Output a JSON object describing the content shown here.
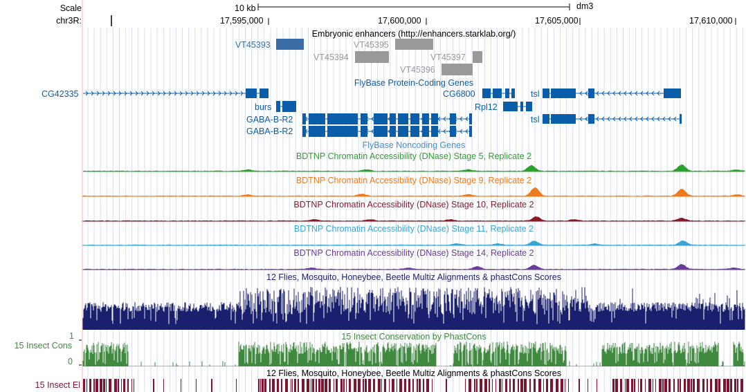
{
  "ruler": {
    "scale_label": "Scale",
    "chrom_label": "chr3R:",
    "scale_bar_label": "10 kb",
    "assembly": "dm3",
    "positions": [
      {
        "label": "17,595,000",
        "pos": 17595000
      },
      {
        "label": "17,600,000",
        "pos": 17600000
      },
      {
        "label": "17,605,000",
        "pos": 17605000
      },
      {
        "label": "17,610,000",
        "pos": 17610000
      }
    ]
  },
  "tracks": {
    "enhancers": {
      "title": "Embryonic enhancers (http://enhancers.starklab.org/)",
      "items": [
        {
          "name": "VT45393",
          "color": "#3a6ea5"
        },
        {
          "name": "VT45394",
          "color": "#999999"
        },
        {
          "name": "VT45395",
          "color": "#999999"
        },
        {
          "name": "VT45396",
          "color": "#999999"
        },
        {
          "name": "VT45397",
          "color": "#999999"
        }
      ]
    },
    "protein_coding": {
      "title": "FlyBase Protein-Coding Genes",
      "color": "#0a5da8",
      "genes": [
        "CG42335",
        "burs",
        "GABA-B-R2",
        "GABA-B-R2",
        "CG6800",
        "Rpl12",
        "tsl",
        "tsl"
      ]
    },
    "noncoding": {
      "title": "FlyBase Noncoding Genes"
    },
    "dnase": [
      {
        "title": "BDTNP Chromatin Accessibility (DNase) Stage 5, Replicate 2",
        "color": "#2ca02c"
      },
      {
        "title": "BDTNP Chromatin Accessibility (DNase) Stage 9, Replicate 2",
        "color": "#ef7b1a"
      },
      {
        "title": "BDTNP Chromatin Accessibility (DNase) Stage 10, Replicate 2",
        "color": "#8b1a2b"
      },
      {
        "title": "BDTNP Chromatin Accessibility (DNase) Stage 11, Replicate 2",
        "color": "#3aa6d8"
      },
      {
        "title": "BDTNP Chromatin Accessibility (DNase) Stage 14, Replicate 2",
        "color": "#6a3d9a"
      }
    ],
    "multiz": {
      "title": "12 Flies, Mosquito, Honeybee, Beetle Multiz Alignments & phastCons Scores",
      "color": "#1a1f6e"
    },
    "conservation": {
      "title": "15 Insect Conservation by PhastCons",
      "side_label": "15 Insect Cons",
      "max_label": "1",
      "min_label": "0",
      "color": "#3f8a3f"
    },
    "elements": {
      "title": "12 Flies, Mosquito, Honeybee, Beetle Multiz Alignments & phastCons Scores",
      "side_label": "15 Insect El",
      "color": "#7a1630"
    }
  }
}
